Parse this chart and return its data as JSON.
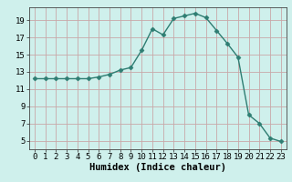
{
  "x": [
    0,
    1,
    2,
    3,
    4,
    5,
    6,
    7,
    8,
    9,
    10,
    11,
    12,
    13,
    14,
    15,
    16,
    17,
    18,
    19,
    20,
    21,
    22,
    23
  ],
  "y": [
    12.2,
    12.2,
    12.2,
    12.2,
    12.2,
    12.2,
    12.4,
    12.7,
    13.2,
    13.5,
    15.5,
    18.0,
    17.3,
    19.2,
    19.5,
    19.8,
    19.3,
    17.8,
    16.3,
    14.7,
    8.0,
    7.0,
    5.3,
    4.9
  ],
  "line_color": "#2e7d72",
  "marker": "D",
  "marker_size": 2.5,
  "bg_color": "#cff0ec",
  "grid_color": "#c8a8a8",
  "xlabel": "Humidex (Indice chaleur)",
  "xlim": [
    -0.5,
    23.5
  ],
  "ylim": [
    4.0,
    20.5
  ],
  "xticks": [
    0,
    1,
    2,
    3,
    4,
    5,
    6,
    7,
    8,
    9,
    10,
    11,
    12,
    13,
    14,
    15,
    16,
    17,
    18,
    19,
    20,
    21,
    22,
    23
  ],
  "yticks": [
    5,
    7,
    9,
    11,
    13,
    15,
    17,
    19
  ],
  "tick_fontsize": 6.5,
  "label_fontsize": 7.5
}
